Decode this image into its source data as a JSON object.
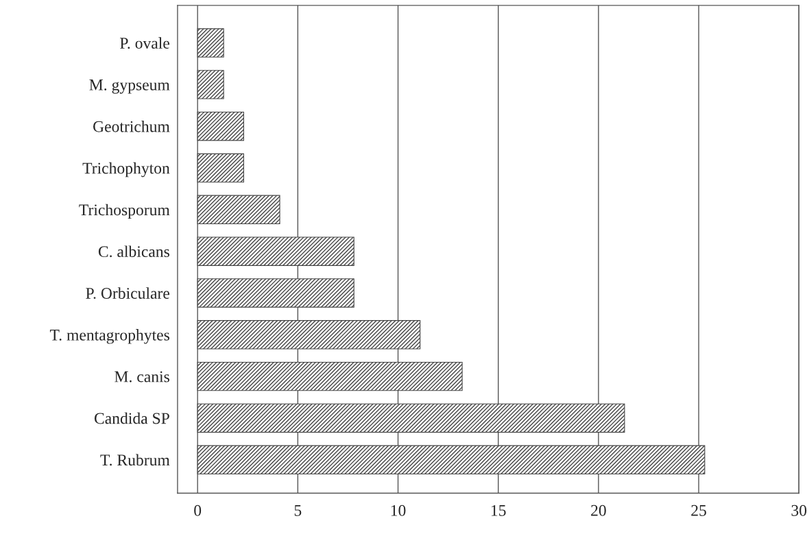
{
  "chart_data": {
    "type": "bar",
    "orientation": "horizontal",
    "categories": [
      "P. ovale",
      "M. gypseum",
      "Geotrichum",
      "Trichophyton",
      "Trichosporum",
      "C. albicans",
      "P. Orbiculare",
      "T. mentagrophytes",
      "M. canis",
      "Candida SP",
      "T. Rubrum"
    ],
    "values": [
      1.3,
      1.3,
      2.3,
      2.3,
      4.1,
      7.8,
      7.8,
      11.1,
      13.2,
      21.3,
      25.3
    ],
    "color": "#444444",
    "xlim": [
      -1,
      30
    ],
    "xticks": [
      0,
      5,
      10,
      15,
      20,
      25,
      30
    ],
    "grid": "x"
  }
}
